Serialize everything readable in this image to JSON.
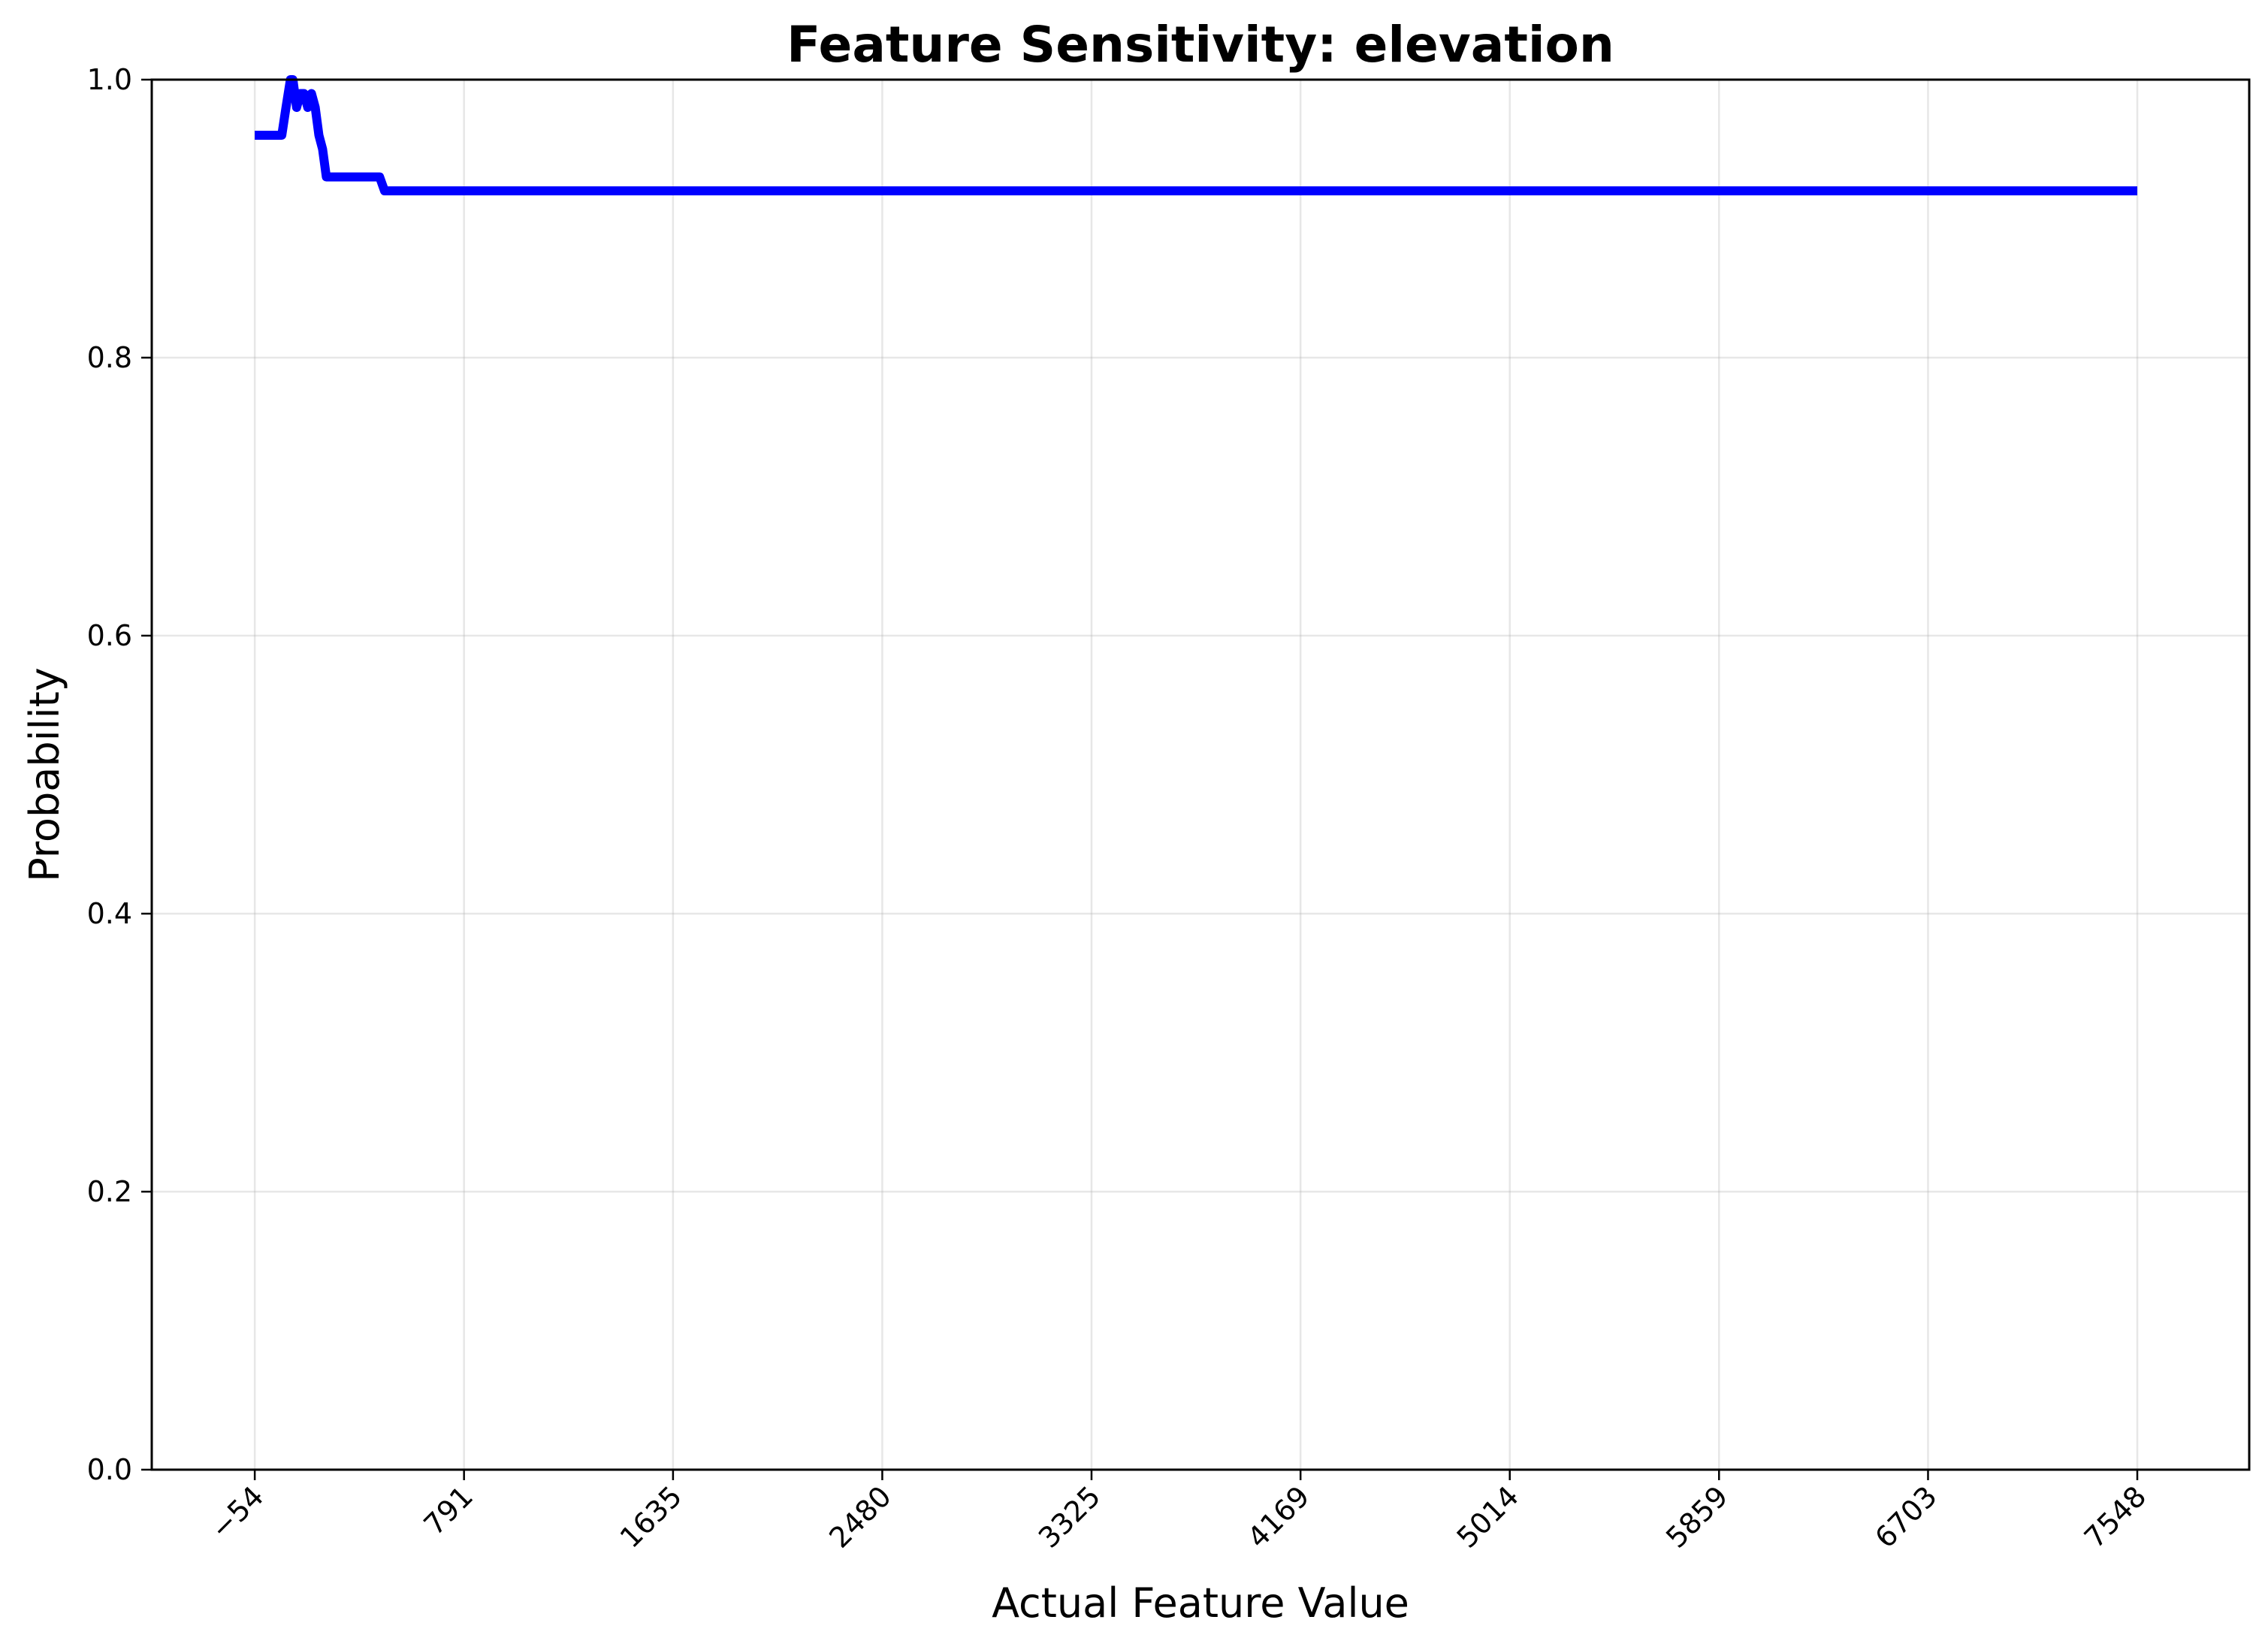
{
  "chart_data": {
    "type": "line",
    "title": "Feature Sensitivity: elevation",
    "xlabel": "Actual Feature Value",
    "ylabel": "Probability",
    "xlim": [
      -470,
      8000
    ],
    "ylim": [
      0.0,
      1.0
    ],
    "grid": true,
    "legend": "none",
    "x_ticks": [
      -54,
      791,
      1635,
      2480,
      3325,
      4169,
      5014,
      5859,
      6703,
      7548
    ],
    "x_tick_labels": [
      "−54",
      "791",
      "1635",
      "2480",
      "3325",
      "4169",
      "5014",
      "5859",
      "6703",
      "7548"
    ],
    "y_ticks": [
      0.0,
      0.2,
      0.4,
      0.6,
      0.8,
      1.0
    ],
    "y_tick_labels": [
      "0.0",
      "0.2",
      "0.4",
      "0.6",
      "0.8",
      "1.0"
    ],
    "series": [
      {
        "color": "#0000ff",
        "x": [
          -54,
          30,
          55,
          72,
          90,
          100,
          115,
          130,
          145,
          160,
          175,
          190,
          205,
          220,
          235,
          250,
          265,
          280,
          300,
          330,
          400,
          450,
          470,
          500,
          560,
          700,
          1200,
          2000,
          3000,
          4000,
          5000,
          6000,
          7000,
          7548
        ],
        "y": [
          0.96,
          0.96,
          0.96,
          0.98,
          1.0,
          1.0,
          0.98,
          0.99,
          0.99,
          0.98,
          0.99,
          0.98,
          0.96,
          0.95,
          0.93,
          0.93,
          0.93,
          0.93,
          0.93,
          0.93,
          0.93,
          0.93,
          0.92,
          0.92,
          0.92,
          0.92,
          0.92,
          0.92,
          0.92,
          0.92,
          0.92,
          0.92,
          0.92,
          0.92
        ]
      }
    ]
  }
}
